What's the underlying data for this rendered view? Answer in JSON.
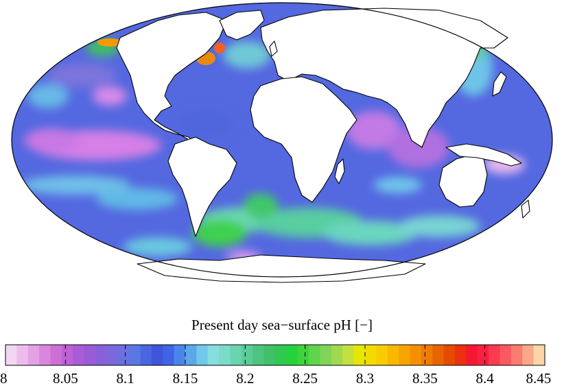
{
  "colorbar": {
    "title": "Present day sea−surface pH [−]",
    "min": 8.0,
    "max": 8.45,
    "ticks": [
      "8",
      "8.05",
      "8.1",
      "8.15",
      "8.2",
      "8.25",
      "8.3",
      "8.35",
      "8.4",
      "8.45"
    ],
    "colors": [
      "#f2d6f2",
      "#ecbdec",
      "#e4a2e4",
      "#da86da",
      "#ce6fd6",
      "#bd62d6",
      "#aa5bd6",
      "#9a5bd6",
      "#8a60d8",
      "#7a68dc",
      "#6a70e0",
      "#5a78e4",
      "#4a66e0",
      "#3f55da",
      "#3f64e4",
      "#4a86ea",
      "#5aa8ea",
      "#70c8ea",
      "#86dede",
      "#7adcc8",
      "#6ad4b0",
      "#5ccc98",
      "#4ec480",
      "#40c068",
      "#30c850",
      "#26d23c",
      "#40d23c",
      "#60d44c",
      "#80d458",
      "#a0d850",
      "#c4e040",
      "#e6e600",
      "#f2dc00",
      "#f8cc00",
      "#f8b800",
      "#f8a400",
      "#f49000",
      "#ee7c00",
      "#e86400",
      "#e64a00",
      "#ea3010",
      "#f41830",
      "#fa2040",
      "#fc3a50",
      "#fc5860",
      "#fc7a70",
      "#fca888",
      "#fcd6a8"
    ]
  },
  "map": {
    "projection": "mollweide",
    "ocean_base_color": "#5468e0",
    "land_color": "#ffffff",
    "coastline_color": "#000000"
  }
}
